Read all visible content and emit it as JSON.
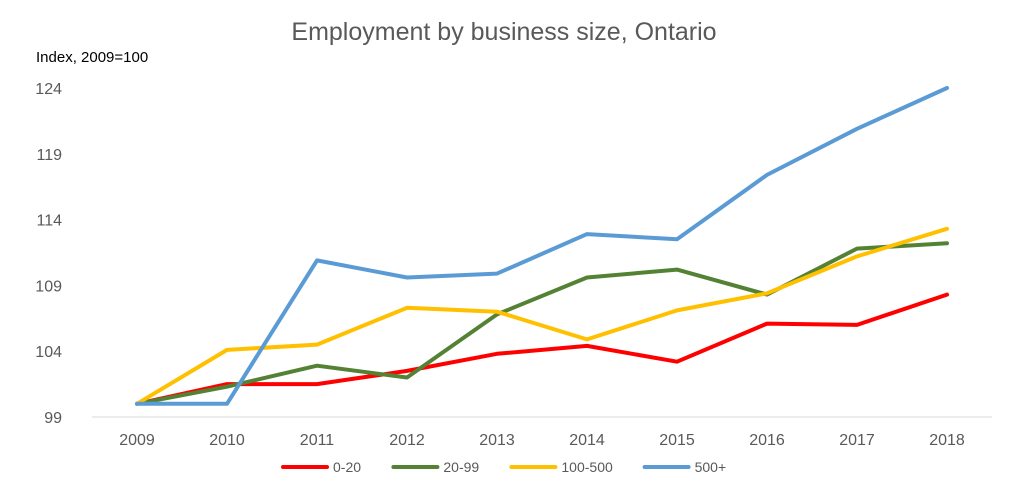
{
  "chart_data": {
    "type": "line",
    "title": "Employment by business size, Ontario",
    "ylabel": "Index, 2009=100",
    "xlabel": "",
    "x": [
      "2009",
      "2010",
      "2011",
      "2012",
      "2013",
      "2014",
      "2015",
      "2016",
      "2017",
      "2018"
    ],
    "yticks": [
      99,
      104,
      109,
      114,
      119,
      124
    ],
    "ylim": [
      99,
      124
    ],
    "grid": false,
    "legend_position": "bottom",
    "series": [
      {
        "name": "0-20",
        "color": "#FF0000",
        "values": [
          100,
          101.5,
          101.5,
          102.5,
          103.8,
          104.4,
          103.2,
          106.1,
          106,
          108.3
        ]
      },
      {
        "name": "20-99",
        "color": "#548235",
        "values": [
          100,
          101.3,
          102.9,
          102.0,
          106.8,
          109.6,
          110.2,
          108.3,
          111.8,
          112.2
        ]
      },
      {
        "name": "100-500",
        "color": "#FFC000",
        "values": [
          100,
          104.1,
          104.5,
          107.3,
          107.0,
          104.9,
          107.1,
          108.4,
          111.2,
          113.3
        ]
      },
      {
        "name": "500+",
        "color": "#5B9BD5",
        "values": [
          100,
          100,
          110.9,
          109.6,
          109.9,
          112.9,
          112.5,
          117.4,
          120.9,
          124.0
        ]
      }
    ]
  }
}
